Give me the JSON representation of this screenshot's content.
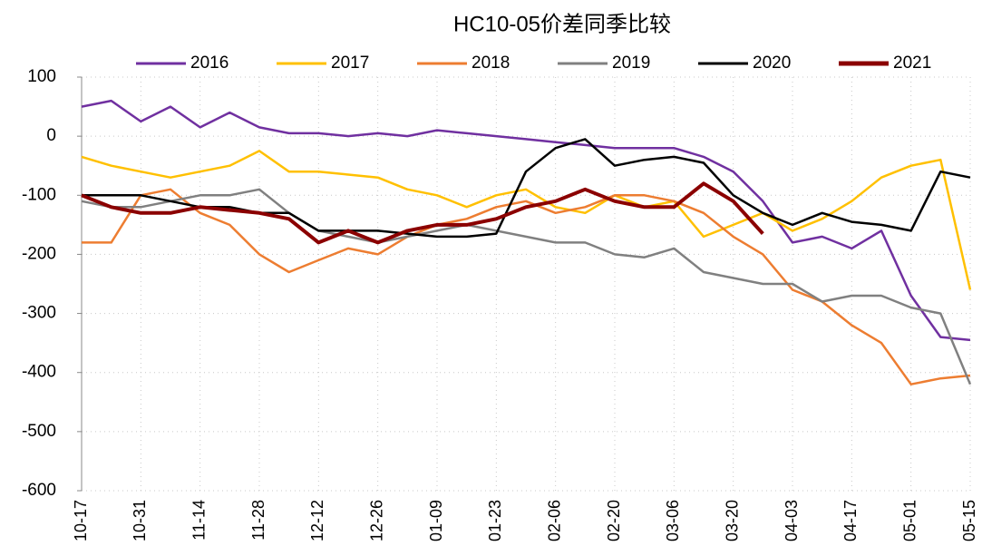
{
  "chart_data": {
    "type": "line",
    "title": "HC10-05价差同季比较",
    "categories": [
      "10-17",
      null,
      "10-31",
      null,
      "11-14",
      null,
      "11-28",
      null,
      "12-12",
      null,
      "12-26",
      null,
      "01-09",
      null,
      "01-23",
      null,
      "02-06",
      null,
      "02-20",
      null,
      "03-06",
      null,
      "03-20",
      null,
      "04-03",
      null,
      "04-17",
      null,
      "05-01",
      null,
      "05-15"
    ],
    "series": [
      {
        "name": "2016",
        "color": "#7030a0",
        "values": [
          50,
          60,
          25,
          50,
          15,
          40,
          15,
          5,
          5,
          0,
          5,
          0,
          10,
          5,
          0,
          -5,
          -10,
          -15,
          -20,
          -20,
          -20,
          -35,
          -60,
          -110,
          -180,
          -170,
          -190,
          -160,
          -270,
          -340,
          -345
        ]
      },
      {
        "name": "2017",
        "color": "#ffc000",
        "values": [
          -35,
          -50,
          -60,
          -70,
          -60,
          -50,
          -25,
          -60,
          -60,
          -65,
          -70,
          -90,
          -100,
          -120,
          -100,
          -90,
          -120,
          -130,
          -100,
          -120,
          -110,
          -170,
          -150,
          -130,
          -160,
          -140,
          -110,
          -70,
          -50,
          -40,
          -260
        ]
      },
      {
        "name": "2018",
        "color": "#ed7d31",
        "values": [
          -180,
          -180,
          -100,
          -90,
          -130,
          -150,
          -200,
          -230,
          -210,
          -190,
          -200,
          -170,
          -150,
          -140,
          -120,
          -110,
          -130,
          -120,
          -100,
          -100,
          -110,
          -130,
          -170,
          -200,
          -260,
          -280,
          -320,
          -350,
          -420,
          -410,
          -405
        ]
      },
      {
        "name": "2019",
        "color": "#808080",
        "values": [
          -110,
          -120,
          -120,
          -110,
          -100,
          -100,
          -90,
          -130,
          -160,
          -170,
          -180,
          -170,
          -160,
          -150,
          -160,
          -170,
          -180,
          -180,
          -200,
          -205,
          -190,
          -230,
          -240,
          -250,
          -250,
          -280,
          -270,
          -270,
          -290,
          -300,
          -420
        ]
      },
      {
        "name": "2020",
        "color": "#000000",
        "values": [
          -100,
          -100,
          -100,
          -110,
          -120,
          -120,
          -130,
          -130,
          -160,
          -160,
          -160,
          -165,
          -170,
          -170,
          -165,
          -60,
          -20,
          -5,
          -50,
          -40,
          -35,
          -45,
          -100,
          -130,
          -150,
          -130,
          -145,
          -150,
          -160,
          -60,
          -70
        ]
      },
      {
        "name": "2021",
        "color": "#8b0000",
        "values": [
          -100,
          -120,
          -130,
          -130,
          -120,
          -125,
          -130,
          -140,
          -180,
          -160,
          -180,
          -160,
          -150,
          -150,
          -140,
          -120,
          -110,
          -90,
          -110,
          -120,
          -120,
          -80,
          -110,
          -165,
          null,
          null,
          null,
          null,
          null,
          null,
          null
        ]
      }
    ],
    "ylim": [
      -600,
      100
    ],
    "yticks": [
      -600,
      -500,
      -400,
      -300,
      -200,
      -100,
      0,
      100
    ],
    "grid": true
  }
}
